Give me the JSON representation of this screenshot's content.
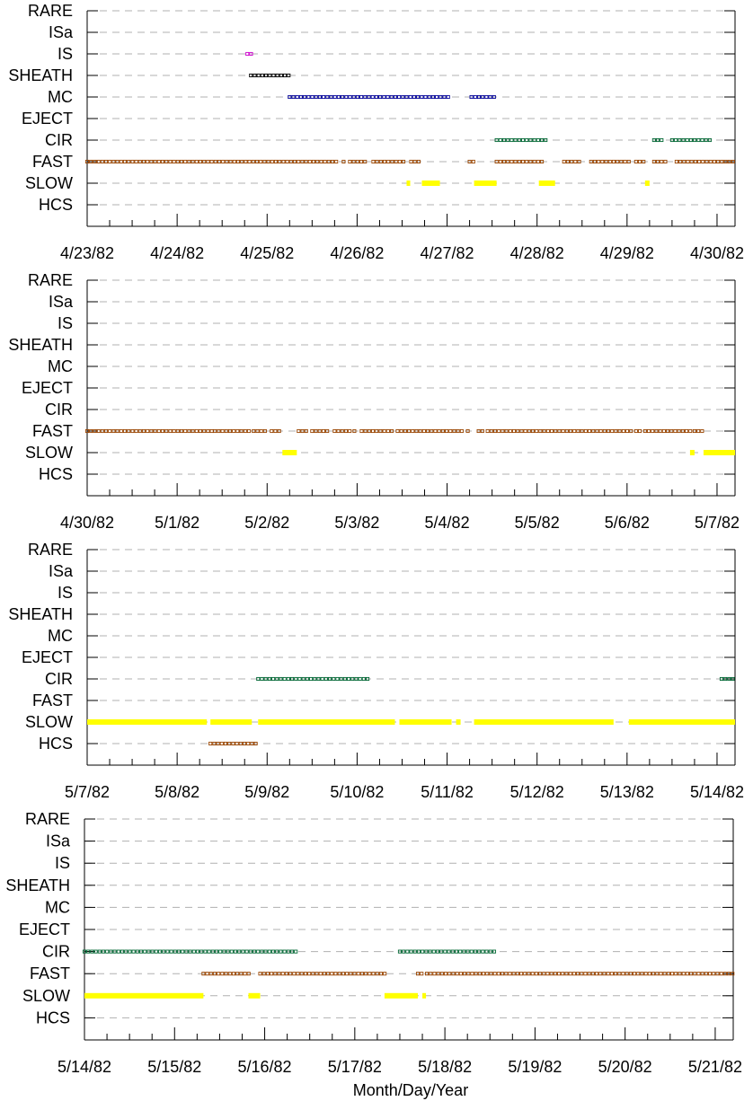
{
  "chart_data": [
    {
      "type": "scatter",
      "x_axis_title": "",
      "categories": [
        "RARE",
        "ISa",
        "IS",
        "SHEATH",
        "MC",
        "EJECT",
        "CIR",
        "FAST",
        "SLOW",
        "HCS"
      ],
      "x_ticks": [
        "4/23/82",
        "4/24/82",
        "4/25/82",
        "4/26/82",
        "4/27/82",
        "4/28/82",
        "4/29/82",
        "4/30/82"
      ],
      "xlim_days": [
        0,
        7.2
      ],
      "grid": "dashed horizontal",
      "series": [
        {
          "category": "IS",
          "color": "#cc00cc",
          "style": "box",
          "segments": [
            [
              1.78,
              1.82
            ]
          ]
        },
        {
          "category": "SHEATH",
          "color": "#000000",
          "style": "box",
          "segments": [
            [
              1.82,
              2.25
            ]
          ]
        },
        {
          "category": "MC",
          "color": "#000099",
          "style": "box",
          "segments": [
            [
              2.25,
              4.02
            ],
            [
              4.27,
              4.55
            ]
          ]
        },
        {
          "category": "CIR",
          "color": "#006633",
          "style": "box",
          "segments": [
            [
              4.55,
              5.12
            ],
            [
              6.3,
              6.42
            ],
            [
              6.5,
              6.92
            ]
          ]
        },
        {
          "category": "FAST",
          "color": "#994400",
          "style": "box",
          "segments": [
            [
              0.0,
              2.8
            ],
            [
              2.85,
              2.88
            ],
            [
              2.92,
              3.12
            ],
            [
              3.18,
              3.55
            ],
            [
              3.6,
              3.72
            ],
            [
              4.25,
              4.29
            ],
            [
              4.55,
              5.05
            ],
            [
              5.3,
              5.5
            ],
            [
              5.6,
              6.05
            ],
            [
              6.1,
              6.2
            ],
            [
              6.3,
              6.45
            ],
            [
              6.55,
              7.2
            ]
          ]
        },
        {
          "category": "SLOW",
          "color": "#ffff00",
          "style": "bar",
          "segments": [
            [
              3.55,
              3.59
            ],
            [
              3.72,
              3.92
            ],
            [
              4.3,
              4.55
            ],
            [
              5.02,
              5.2
            ],
            [
              6.2,
              6.25
            ]
          ]
        }
      ]
    },
    {
      "type": "scatter",
      "x_axis_title": "",
      "categories": [
        "RARE",
        "ISa",
        "IS",
        "SHEATH",
        "MC",
        "EJECT",
        "CIR",
        "FAST",
        "SLOW",
        "HCS"
      ],
      "x_ticks": [
        "4/30/82",
        "5/1/82",
        "5/2/82",
        "5/3/82",
        "5/4/82",
        "5/5/82",
        "5/6/82",
        "5/7/82"
      ],
      "xlim_days": [
        0,
        7.2
      ],
      "grid": "dashed horizontal",
      "series": [
        {
          "category": "FAST",
          "color": "#994400",
          "style": "box",
          "segments": [
            [
              0.0,
              1.38
            ],
            [
              1.42,
              1.8
            ],
            [
              1.85,
              2.0
            ],
            [
              2.05,
              2.15
            ],
            [
              2.35,
              2.45
            ],
            [
              2.5,
              2.7
            ],
            [
              2.75,
              2.92
            ],
            [
              2.97,
              3.0
            ],
            [
              3.05,
              3.4
            ],
            [
              3.45,
              4.17
            ],
            [
              4.23,
              4.26
            ],
            [
              4.35,
              4.39
            ],
            [
              4.45,
              6.05
            ],
            [
              6.1,
              6.15
            ],
            [
              6.2,
              6.7
            ],
            [
              6.75,
              6.85
            ]
          ]
        },
        {
          "category": "SLOW",
          "color": "#ffff00",
          "style": "bar",
          "segments": [
            [
              2.17,
              2.33
            ],
            [
              6.7,
              6.75
            ],
            [
              6.85,
              7.2
            ]
          ]
        }
      ]
    },
    {
      "type": "scatter",
      "x_axis_title": "",
      "categories": [
        "RARE",
        "ISa",
        "IS",
        "SHEATH",
        "MC",
        "EJECT",
        "CIR",
        "FAST",
        "SLOW",
        "HCS"
      ],
      "x_ticks": [
        "5/7/82",
        "5/8/82",
        "5/9/82",
        "5/10/82",
        "5/11/82",
        "5/12/82",
        "5/13/82",
        "5/14/82"
      ],
      "xlim_days": [
        0,
        7.2
      ],
      "grid": "dashed horizontal",
      "series": [
        {
          "category": "CIR",
          "color": "#006633",
          "style": "box",
          "segments": [
            [
              1.9,
              3.12
            ],
            [
              7.05,
              7.2
            ]
          ]
        },
        {
          "category": "SLOW",
          "color": "#ffff00",
          "style": "bar",
          "segments": [
            [
              0.0,
              1.33
            ],
            [
              1.37,
              1.83
            ],
            [
              1.9,
              3.42
            ],
            [
              3.47,
              4.05
            ],
            [
              4.1,
              4.15
            ],
            [
              4.3,
              5.85
            ],
            [
              6.02,
              7.2
            ]
          ]
        },
        {
          "category": "HCS",
          "color": "#994400",
          "style": "box",
          "segments": [
            [
              1.37,
              1.9
            ]
          ]
        }
      ]
    },
    {
      "type": "scatter",
      "x_axis_title": "Month/Day/Year",
      "categories": [
        "RARE",
        "ISa",
        "IS",
        "SHEATH",
        "MC",
        "EJECT",
        "CIR",
        "FAST",
        "SLOW",
        "HCS"
      ],
      "x_ticks": [
        "5/14/82",
        "5/15/82",
        "5/16/82",
        "5/17/82",
        "5/18/82",
        "5/19/82",
        "5/20/82",
        "5/21/82"
      ],
      "xlim_days": [
        0,
        7.2
      ],
      "grid": "dashed horizontal",
      "series": [
        {
          "category": "CIR",
          "color": "#006633",
          "style": "box",
          "segments": [
            [
              0.0,
              2.37
            ],
            [
              3.5,
              4.55
            ]
          ]
        },
        {
          "category": "FAST",
          "color": "#994400",
          "style": "box",
          "segments": [
            [
              1.32,
              1.83
            ],
            [
              1.95,
              3.33
            ],
            [
              3.7,
              3.75
            ],
            [
              3.8,
              7.2
            ]
          ]
        },
        {
          "category": "SLOW",
          "color": "#ffff00",
          "style": "bar",
          "segments": [
            [
              0.0,
              1.32
            ],
            [
              1.82,
              1.95
            ],
            [
              3.33,
              3.7
            ],
            [
              3.75,
              3.79
            ]
          ]
        }
      ]
    }
  ]
}
